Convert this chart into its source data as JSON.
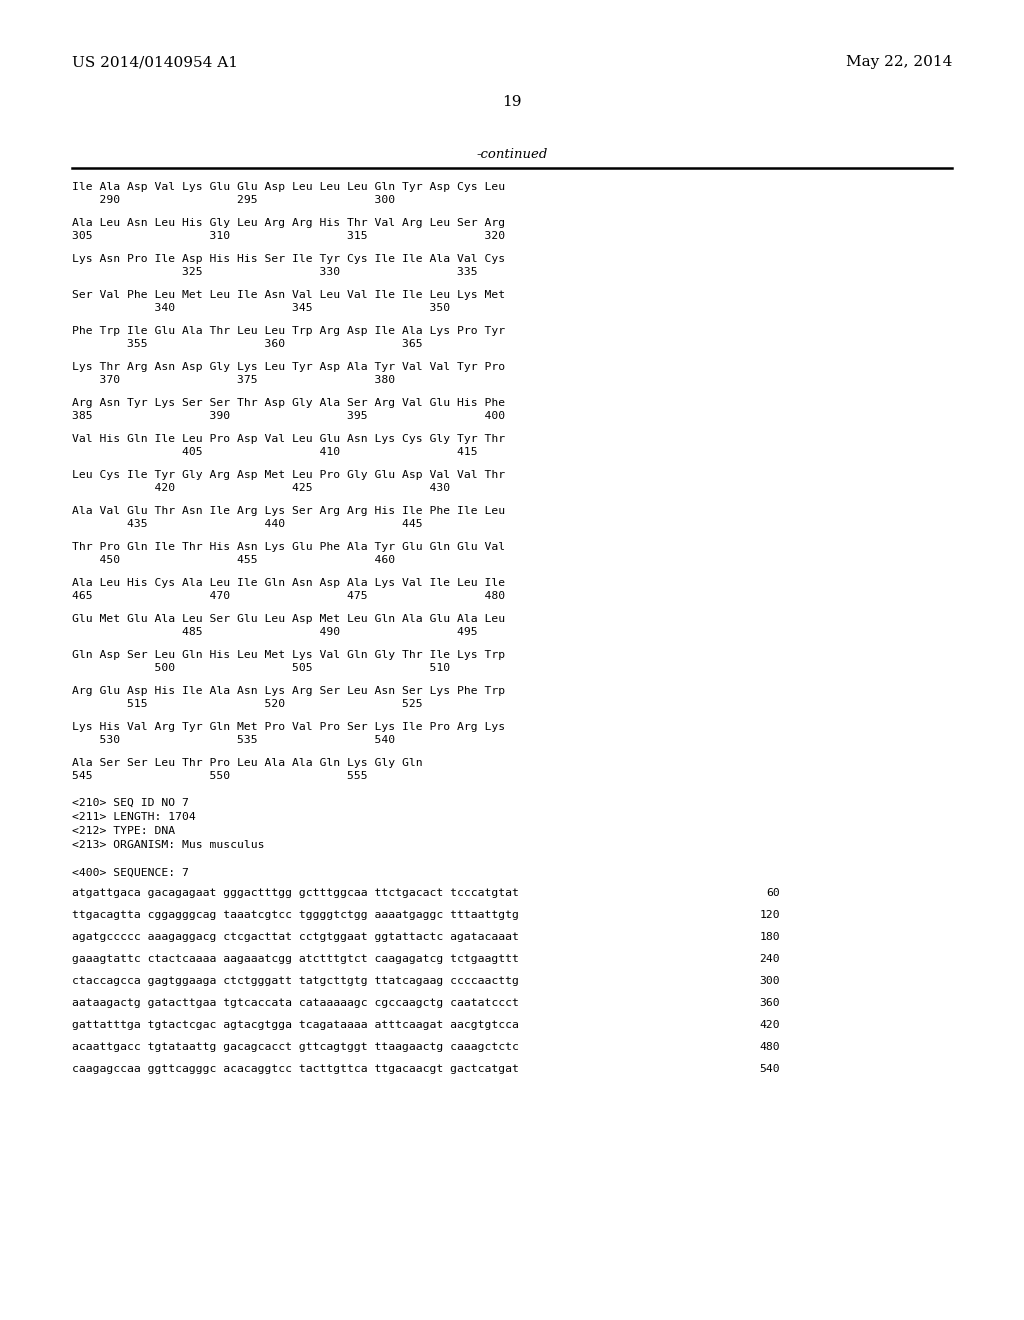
{
  "patent_left": "US 2014/0140954 A1",
  "patent_right": "May 22, 2014",
  "page_number": "19",
  "continued_label": "-continued",
  "background_color": "#ffffff",
  "text_color": "#000000",
  "sequence_blocks": [
    {
      "line1": "Ile Ala Asp Val Lys Glu Glu Asp Leu Leu Leu Gln Tyr Asp Cys Leu",
      "line2": "    290                 295                 300"
    },
    {
      "line1": "Ala Leu Asn Leu His Gly Leu Arg Arg His Thr Val Arg Leu Ser Arg",
      "line2": "305                 310                 315                 320"
    },
    {
      "line1": "Lys Asn Pro Ile Asp His His Ser Ile Tyr Cys Ile Ile Ala Val Cys",
      "line2": "                325                 330                 335"
    },
    {
      "line1": "Ser Val Phe Leu Met Leu Ile Asn Val Leu Val Ile Ile Leu Lys Met",
      "line2": "            340                 345                 350"
    },
    {
      "line1": "Phe Trp Ile Glu Ala Thr Leu Leu Trp Arg Asp Ile Ala Lys Pro Tyr",
      "line2": "        355                 360                 365"
    },
    {
      "line1": "Lys Thr Arg Asn Asp Gly Lys Leu Tyr Asp Ala Tyr Val Val Tyr Pro",
      "line2": "    370                 375                 380"
    },
    {
      "line1": "Arg Asn Tyr Lys Ser Ser Thr Asp Gly Ala Ser Arg Val Glu His Phe",
      "line2": "385                 390                 395                 400"
    },
    {
      "line1": "Val His Gln Ile Leu Pro Asp Val Leu Glu Asn Lys Cys Gly Tyr Thr",
      "line2": "                405                 410                 415"
    },
    {
      "line1": "Leu Cys Ile Tyr Gly Arg Asp Met Leu Pro Gly Glu Asp Val Val Thr",
      "line2": "            420                 425                 430"
    },
    {
      "line1": "Ala Val Glu Thr Asn Ile Arg Lys Ser Arg Arg His Ile Phe Ile Leu",
      "line2": "        435                 440                 445"
    },
    {
      "line1": "Thr Pro Gln Ile Thr His Asn Lys Glu Phe Ala Tyr Glu Gln Glu Val",
      "line2": "    450                 455                 460"
    },
    {
      "line1": "Ala Leu His Cys Ala Leu Ile Gln Asn Asp Ala Lys Val Ile Leu Ile",
      "line2": "465                 470                 475                 480"
    },
    {
      "line1": "Glu Met Glu Ala Leu Ser Glu Leu Asp Met Leu Gln Ala Glu Ala Leu",
      "line2": "                485                 490                 495"
    },
    {
      "line1": "Gln Asp Ser Leu Gln His Leu Met Lys Val Gln Gly Thr Ile Lys Trp",
      "line2": "            500                 505                 510"
    },
    {
      "line1": "Arg Glu Asp His Ile Ala Asn Lys Arg Ser Leu Asn Ser Lys Phe Trp",
      "line2": "        515                 520                 525"
    },
    {
      "line1": "Lys His Val Arg Tyr Gln Met Pro Val Pro Ser Lys Ile Pro Arg Lys",
      "line2": "    530                 535                 540"
    },
    {
      "line1": "Ala Ser Ser Leu Thr Pro Leu Ala Ala Gln Lys Gly Gln",
      "line2": "545                 550                 555"
    }
  ],
  "metadata_lines": [
    "<210> SEQ ID NO 7",
    "<211> LENGTH: 1704",
    "<212> TYPE: DNA",
    "<213> ORGANISM: Mus musculus",
    "",
    "<400> SEQUENCE: 7"
  ],
  "dna_lines": [
    {
      "seq": "atgattgaca gacagagaat gggactttgg gctttggcaa ttctgacact tcccatgtat",
      "num": "60"
    },
    {
      "seq": "ttgacagtta cggagggcag taaatcgtcc tggggtctgg aaaatgaggc tttaattgtg",
      "num": "120"
    },
    {
      "seq": "agatgccccc aaagaggacg ctcgacttat cctgtggaat ggtattactc agatacaaat",
      "num": "180"
    },
    {
      "seq": "gaaagtattc ctactcaaaa aagaaatcgg atctttgtct caagagatcg tctgaagttt",
      "num": "240"
    },
    {
      "seq": "ctaccagcca gagtggaaga ctctgggatt tatgcttgtg ttatcagaag ccccaacttg",
      "num": "300"
    },
    {
      "seq": "aataagactg gatacttgaa tgtcaccata cataaaaagc cgccaagctg caatatccct",
      "num": "360"
    },
    {
      "seq": "gattatttga tgtactcgac agtacgtgga tcagataaaa atttcaagat aacgtgtcca",
      "num": "420"
    },
    {
      "seq": "acaattgacc tgtataattg gacagcacct gttcagtggt ttaagaactg caaagctctc",
      "num": "480"
    },
    {
      "seq": "caagagccaa ggttcagggc acacaggtcc tacttgttca ttgacaacgt gactcatgat",
      "num": "540"
    }
  ]
}
